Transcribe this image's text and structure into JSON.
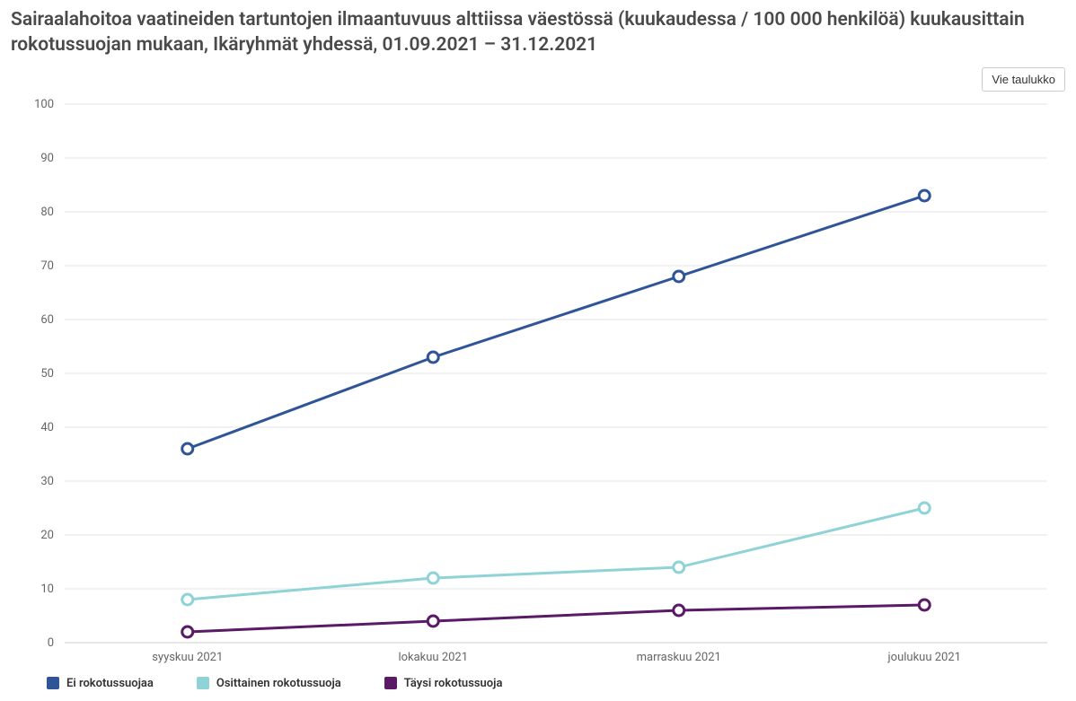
{
  "title": "Sairaalahoitoa vaatineiden tartuntojen ilmaantuvuus alttiissa väestössä (kuukaudessa / 100 000 henkilöä) kuukausittain rokotussuojan mukaan, Ikäryhmät yhdessä, 01.09.2021 – 31.12.2021",
  "toolbar": {
    "export_label": "Vie taulukko"
  },
  "chart": {
    "type": "line",
    "categories": [
      "syyskuu 2021",
      "lokakuu 2021",
      "marraskuu 2021",
      "joulukuu 2021"
    ],
    "ylim": [
      0,
      100
    ],
    "ytick_step": 10,
    "background_color": "#ffffff",
    "grid_color": "#e6e6e6",
    "baseline_color": "#cccccc",
    "axis_text_color": "#666666",
    "axis_fontsize": 13,
    "line_width": 3,
    "marker_radius": 6,
    "marker_stroke_width": 3,
    "marker_fill": "#ffffff",
    "series": [
      {
        "name": "Ei rokotussuojaa",
        "color": "#2f5597",
        "values": [
          36,
          53,
          68,
          83
        ]
      },
      {
        "name": "Osittainen rokotussuoja",
        "color": "#8fd3d6",
        "values": [
          8,
          12,
          14,
          25
        ]
      },
      {
        "name": "Täysi rokotussuoja",
        "color": "#5a1a66",
        "values": [
          2,
          4,
          6,
          7
        ]
      }
    ]
  },
  "legend": {
    "items": [
      {
        "label": "Ei rokotussuojaa",
        "color": "#2f5597"
      },
      {
        "label": "Osittainen rokotussuoja",
        "color": "#8fd3d6"
      },
      {
        "label": "Täysi rokotussuoja",
        "color": "#5a1a66"
      }
    ]
  }
}
